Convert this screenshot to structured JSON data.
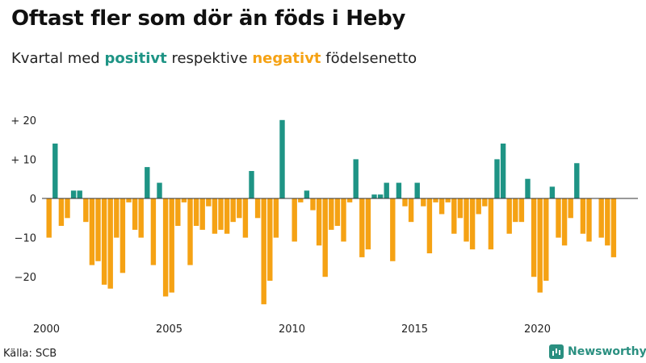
{
  "header": {
    "title": "Oftast fler som dör än föds i Heby",
    "subtitle_prefix": "Kvartal med",
    "subtitle_positive": "positivt",
    "subtitle_middle": "respektive",
    "subtitle_negative": "negativt",
    "subtitle_suffix": "födelsenetto"
  },
  "footer": {
    "source": "Källa: SCB",
    "brand": "Newsworthy"
  },
  "chart_data": {
    "type": "bar",
    "title": "Oftast fler som dör än föds i Heby",
    "subtitle": "Kvartal med positivt respektive negativt födelsenetto",
    "xlabel": "",
    "ylabel": "",
    "x_start_year": 2000,
    "periods_per_year": 4,
    "x_ticks": [
      2000,
      2005,
      2010,
      2015,
      2020
    ],
    "x_tick_labels": [
      "2000",
      "2005",
      "2010",
      "2015",
      "2020"
    ],
    "y_ticks": [
      20,
      10,
      0,
      -10,
      -20
    ],
    "y_tick_labels": [
      "+ 20",
      "+ 10",
      "0",
      "−10",
      "−20"
    ],
    "ylim": [
      -28,
      20
    ],
    "grid": false,
    "colors": {
      "positive": "#1e9485",
      "negative": "#f5a214"
    },
    "values": [
      -10,
      14,
      -7,
      -5,
      2,
      2,
      -6,
      -17,
      -16,
      -22,
      -23,
      -10,
      -19,
      -1,
      -8,
      -10,
      8,
      -17,
      4,
      -25,
      -24,
      -7,
      -1,
      -17,
      -7,
      -8,
      -2,
      -9,
      -8,
      -9,
      -6,
      -5,
      -10,
      7,
      -5,
      -27,
      -21,
      -10,
      20,
      0,
      -11,
      -1,
      2,
      -3,
      -12,
      -20,
      -8,
      -7,
      -11,
      -1,
      10,
      -15,
      -13,
      1,
      1,
      4,
      -16,
      4,
      -2,
      -6,
      4,
      -2,
      -14,
      -1,
      -4,
      -1,
      -9,
      -5,
      -11,
      -13,
      -4,
      -2,
      -13,
      10,
      14,
      -9,
      -6,
      -6,
      5,
      -20,
      -24,
      -21,
      3,
      -10,
      -12,
      -5,
      9,
      -9,
      -11,
      0,
      -10,
      -12,
      -15
    ]
  }
}
